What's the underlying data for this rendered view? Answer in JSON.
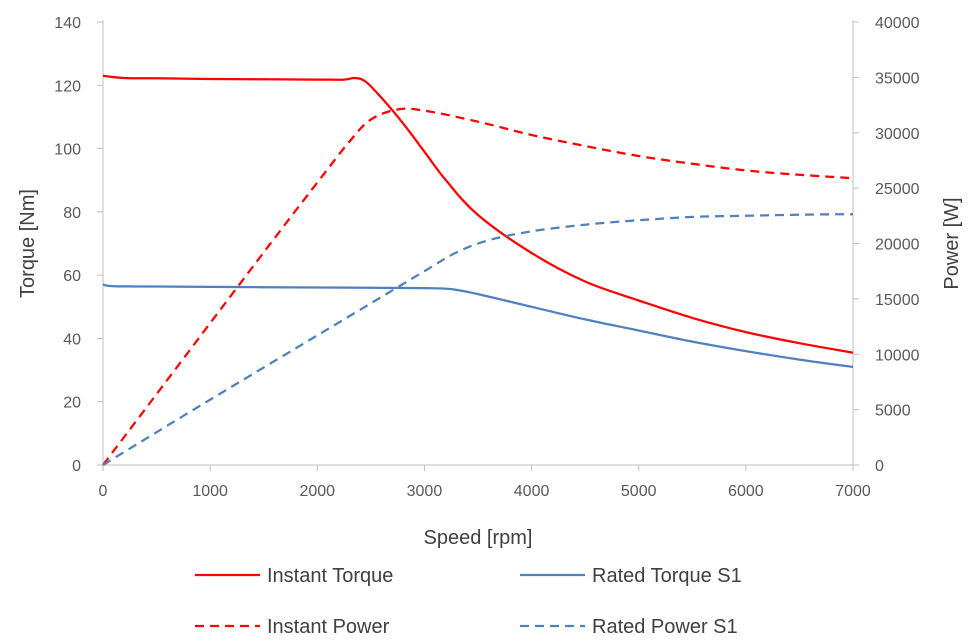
{
  "chart_data": {
    "type": "line",
    "title": "",
    "xlabel": "Speed [rpm]",
    "ylabel_left": "Torque [Nm]",
    "ylabel_right": "Power [W]",
    "xlim": [
      0,
      7000
    ],
    "ylim_left": [
      0,
      140
    ],
    "ylim_right": [
      0,
      40000
    ],
    "x_ticks": [
      "0",
      "1000",
      "2000",
      "3000",
      "4000",
      "5000",
      "6000",
      "7000"
    ],
    "y_left_ticks": [
      "0",
      "20",
      "40",
      "60",
      "80",
      "100",
      "120",
      "140"
    ],
    "y_right_ticks": [
      "0",
      "5000",
      "10000",
      "15000",
      "20000",
      "25000",
      "30000",
      "35000",
      "40000"
    ],
    "grid": false,
    "legend_position": "bottom",
    "series": [
      {
        "name": "Instant Torque",
        "axis": "left",
        "color": "#ff0000",
        "dash": "solid",
        "points": [
          [
            0,
            123
          ],
          [
            200,
            122.3
          ],
          [
            500,
            122.2
          ],
          [
            1000,
            122
          ],
          [
            1500,
            121.9
          ],
          [
            2000,
            121.8
          ],
          [
            2250,
            121.8
          ],
          [
            2350,
            122.3
          ],
          [
            2450,
            121.2
          ],
          [
            2600,
            116
          ],
          [
            2800,
            108
          ],
          [
            3000,
            99
          ],
          [
            3200,
            90
          ],
          [
            3500,
            79
          ],
          [
            4000,
            67
          ],
          [
            4500,
            58
          ],
          [
            5000,
            52
          ],
          [
            5500,
            46.5
          ],
          [
            6000,
            42
          ],
          [
            6500,
            38.5
          ],
          [
            7000,
            35.5
          ]
        ]
      },
      {
        "name": "Rated Torque S1",
        "axis": "left",
        "color": "#4f81bd",
        "dash": "solid",
        "points": [
          [
            0,
            57
          ],
          [
            100,
            56.5
          ],
          [
            500,
            56.4
          ],
          [
            1000,
            56.3
          ],
          [
            1500,
            56.2
          ],
          [
            2000,
            56.1
          ],
          [
            2500,
            56
          ],
          [
            3000,
            55.9
          ],
          [
            3250,
            55.6
          ],
          [
            3500,
            54
          ],
          [
            4000,
            50
          ],
          [
            4500,
            46
          ],
          [
            5000,
            42.5
          ],
          [
            5500,
            39
          ],
          [
            6000,
            36
          ],
          [
            6500,
            33.3
          ],
          [
            7000,
            31
          ]
        ]
      },
      {
        "name": "Instant Power",
        "axis": "right",
        "color": "#ff0000",
        "dash": "dashed",
        "points": [
          [
            0,
            0
          ],
          [
            500,
            6400
          ],
          [
            1000,
            12800
          ],
          [
            1500,
            19200
          ],
          [
            2000,
            25500
          ],
          [
            2300,
            29200
          ],
          [
            2500,
            31200
          ],
          [
            2750,
            32100
          ],
          [
            3000,
            32000
          ],
          [
            3500,
            31000
          ],
          [
            4000,
            29800
          ],
          [
            4500,
            28800
          ],
          [
            5000,
            27900
          ],
          [
            5500,
            27200
          ],
          [
            6000,
            26600
          ],
          [
            6500,
            26200
          ],
          [
            7000,
            25900
          ]
        ]
      },
      {
        "name": "Rated Power S1",
        "axis": "right",
        "color": "#4f81bd",
        "dash": "dashed",
        "points": [
          [
            0,
            0
          ],
          [
            500,
            2960
          ],
          [
            1000,
            5900
          ],
          [
            1500,
            8800
          ],
          [
            2000,
            11700
          ],
          [
            2500,
            14600
          ],
          [
            3000,
            17500
          ],
          [
            3300,
            19200
          ],
          [
            3600,
            20300
          ],
          [
            4000,
            21100
          ],
          [
            4500,
            21700
          ],
          [
            5000,
            22100
          ],
          [
            5500,
            22400
          ],
          [
            6000,
            22500
          ],
          [
            6500,
            22600
          ],
          [
            7000,
            22650
          ]
        ]
      }
    ]
  }
}
